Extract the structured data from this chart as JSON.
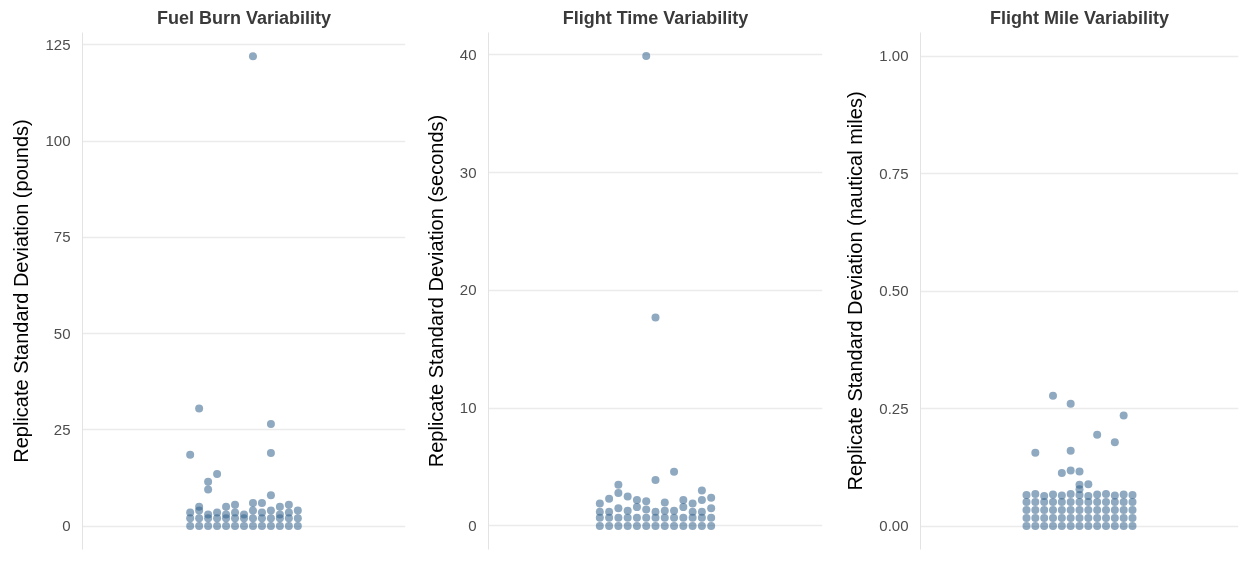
{
  "chart_data": [
    {
      "type": "scatter",
      "title": "Fuel Burn Variability",
      "ylabel": "Replicate Standard Deviation (pounds)",
      "categories": [
        null
      ],
      "ylim": [
        -6.1,
        128.2
      ],
      "yticks": [
        0,
        25,
        50,
        75,
        100,
        125
      ],
      "grid": "y",
      "marker": "circle",
      "series": [
        {
          "color": "#33628c",
          "x": [
            null,
            null,
            null,
            null
          ],
          "values": [
            0,
            2,
            3.5,
            18.5
          ]
        },
        {
          "color": "#33628c",
          "x": [
            null,
            null,
            null,
            null,
            null
          ],
          "values": [
            0,
            2,
            4,
            30.5,
            5
          ]
        },
        {
          "color": "#33628c",
          "x": [
            null,
            null,
            null,
            null,
            null
          ],
          "values": [
            0,
            2,
            3,
            11.5,
            9.5
          ]
        },
        {
          "color": "#33628c",
          "x": [
            null,
            null,
            null,
            null
          ],
          "values": [
            0,
            2,
            3.5,
            13.5
          ]
        },
        {
          "color": "#33628c",
          "x": [
            null,
            null,
            null,
            null
          ],
          "values": [
            0,
            2,
            3,
            5
          ]
        },
        {
          "color": "#33628c",
          "x": [
            null,
            null,
            null,
            null
          ],
          "values": [
            0,
            2,
            3.5,
            5.5
          ]
        },
        {
          "color": "#33628c",
          "x": [
            null,
            null,
            null
          ],
          "values": [
            0,
            2,
            3
          ]
        },
        {
          "color": "#33628c",
          "x": [
            null,
            null,
            null,
            null,
            null
          ],
          "values": [
            0,
            2,
            4,
            122,
            6
          ]
        },
        {
          "color": "#33628c",
          "x": [
            null,
            null,
            null,
            null
          ],
          "values": [
            0,
            2,
            3.5,
            6
          ]
        },
        {
          "color": "#33628c",
          "x": [
            null,
            null,
            null,
            null,
            null,
            null
          ],
          "values": [
            0,
            2,
            4,
            26.5,
            19,
            8
          ]
        },
        {
          "color": "#33628c",
          "x": [
            null,
            null,
            null,
            null
          ],
          "values": [
            0,
            2,
            3,
            5
          ]
        },
        {
          "color": "#33628c",
          "x": [
            null,
            null,
            null,
            null
          ],
          "values": [
            0,
            2,
            3.5,
            5.5
          ]
        },
        {
          "color": "#33628c",
          "x": [
            null,
            null,
            null
          ],
          "values": [
            0,
            2,
            4
          ]
        }
      ]
    },
    {
      "type": "scatter",
      "title": "Flight Time Variability",
      "ylabel": "Replicate Standard Deviation (seconds)",
      "categories": [
        null
      ],
      "ylim": [
        -2.0,
        41.9
      ],
      "yticks": [
        0,
        10,
        20,
        30,
        40
      ],
      "grid": "y",
      "marker": "circle",
      "series": [
        {
          "color": "#33628c",
          "x": [
            null,
            null,
            null,
            null
          ],
          "values": [
            0,
            0.7,
            1.2,
            1.9
          ]
        },
        {
          "color": "#33628c",
          "x": [
            null,
            null,
            null,
            null
          ],
          "values": [
            0,
            0.7,
            1.2,
            2.3
          ]
        },
        {
          "color": "#33628c",
          "x": [
            null,
            null,
            null,
            null,
            null
          ],
          "values": [
            0,
            0.7,
            1.5,
            2.8,
            3.5
          ]
        },
        {
          "color": "#33628c",
          "x": [
            null,
            null,
            null,
            null
          ],
          "values": [
            0,
            0.7,
            1.3,
            2.5
          ]
        },
        {
          "color": "#33628c",
          "x": [
            null,
            null,
            null,
            null
          ],
          "values": [
            0,
            0.7,
            1.6,
            2.2
          ]
        },
        {
          "color": "#33628c",
          "x": [
            null,
            null,
            null,
            null,
            null
          ],
          "values": [
            0,
            0.7,
            1.4,
            39.9,
            2.1
          ]
        },
        {
          "color": "#33628c",
          "x": [
            null,
            null,
            null,
            null,
            null
          ],
          "values": [
            0,
            0.7,
            1.2,
            17.7,
            3.9
          ]
        },
        {
          "color": "#33628c",
          "x": [
            null,
            null,
            null,
            null
          ],
          "values": [
            0,
            0.7,
            1.3,
            2.0
          ]
        },
        {
          "color": "#33628c",
          "x": [
            null,
            null,
            null,
            null
          ],
          "values": [
            0,
            0.7,
            1.3,
            4.6
          ]
        },
        {
          "color": "#33628c",
          "x": [
            null,
            null,
            null,
            null
          ],
          "values": [
            0,
            0.7,
            1.6,
            2.2
          ]
        },
        {
          "color": "#33628c",
          "x": [
            null,
            null,
            null,
            null
          ],
          "values": [
            0,
            0.7,
            1.2,
            1.9
          ]
        },
        {
          "color": "#33628c",
          "x": [
            null,
            null,
            null,
            null,
            null
          ],
          "values": [
            0,
            0.7,
            1.2,
            3.0,
            2.2
          ]
        },
        {
          "color": "#33628c",
          "x": [
            null,
            null,
            null,
            null
          ],
          "values": [
            0,
            0.7,
            1.5,
            2.4
          ]
        }
      ]
    },
    {
      "type": "scatter",
      "title": "Flight Mile Variability",
      "ylabel": "Replicate Standard Deviation (nautical miles)",
      "categories": [
        null
      ],
      "ylim": [
        -0.05,
        1.05
      ],
      "yticks": [
        {
          "value": 0,
          "label": "0.00"
        },
        {
          "value": 0.25,
          "label": "0.25"
        },
        {
          "value": 0.5,
          "label": "0.50"
        },
        {
          "value": 0.75,
          "label": "0.75"
        },
        {
          "value": 1,
          "label": "1.00"
        }
      ],
      "grid": "y",
      "marker": "circle",
      "series": [
        {
          "color": "#33628c",
          "x": [
            null,
            null,
            null,
            null,
            null
          ],
          "values": [
            0,
            0.017,
            0.034,
            0.051,
            0.066
          ]
        },
        {
          "color": "#33628c",
          "x": [
            null,
            null,
            null,
            null,
            null,
            null
          ],
          "values": [
            0,
            0.017,
            0.034,
            0.051,
            0.068,
            0.156
          ]
        },
        {
          "color": "#33628c",
          "x": [
            null,
            null,
            null,
            null,
            null
          ],
          "values": [
            0,
            0.017,
            0.034,
            0.051,
            0.064
          ]
        },
        {
          "color": "#33628c",
          "x": [
            null,
            null,
            null,
            null,
            null,
            null
          ],
          "values": [
            0,
            0.017,
            0.034,
            0.051,
            0.067,
            0.277
          ]
        },
        {
          "color": "#33628c",
          "x": [
            null,
            null,
            null,
            null,
            null,
            null
          ],
          "values": [
            0,
            0.017,
            0.034,
            0.051,
            0.065,
            0.113
          ]
        },
        {
          "color": "#33628c",
          "x": [
            null,
            null,
            null,
            null,
            null,
            null,
            null,
            null
          ],
          "values": [
            0,
            0.017,
            0.034,
            0.051,
            0.068,
            0.26,
            0.16,
            0.118
          ]
        },
        {
          "color": "#33628c",
          "x": [
            null,
            null,
            null,
            null,
            null,
            null,
            null,
            null
          ],
          "values": [
            0,
            0.017,
            0.034,
            0.051,
            0.066,
            0.116,
            0.088,
            0.078
          ]
        },
        {
          "color": "#33628c",
          "x": [
            null,
            null,
            null,
            null,
            null,
            null
          ],
          "values": [
            0,
            0.017,
            0.034,
            0.051,
            0.064,
            0.089
          ]
        },
        {
          "color": "#33628c",
          "x": [
            null,
            null,
            null,
            null,
            null,
            null
          ],
          "values": [
            0,
            0.017,
            0.034,
            0.051,
            0.067,
            0.194
          ]
        },
        {
          "color": "#33628c",
          "x": [
            null,
            null,
            null,
            null,
            null
          ],
          "values": [
            0,
            0.017,
            0.034,
            0.051,
            0.068
          ]
        },
        {
          "color": "#33628c",
          "x": [
            null,
            null,
            null,
            null,
            null,
            null
          ],
          "values": [
            0,
            0.017,
            0.034,
            0.051,
            0.065,
            0.178
          ]
        },
        {
          "color": "#33628c",
          "x": [
            null,
            null,
            null,
            null,
            null,
            null
          ],
          "values": [
            0,
            0.017,
            0.034,
            0.051,
            0.067,
            0.235
          ]
        },
        {
          "color": "#33628c",
          "x": [
            null,
            null,
            null,
            null,
            null
          ],
          "values": [
            0,
            0.017,
            0.034,
            0.051,
            0.066
          ]
        }
      ]
    }
  ]
}
